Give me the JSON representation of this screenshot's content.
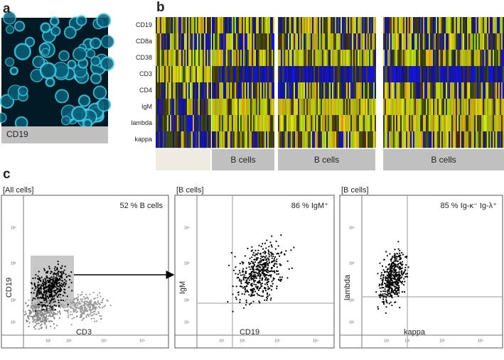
{
  "panel_a": {
    "label": "a",
    "caption": "CD19"
  },
  "panel_b": {
    "label": "b",
    "rows": [
      "CD19",
      "CD8a",
      "CD38",
      "CD3",
      "CD4",
      "IgM",
      "lambda",
      "kappa"
    ],
    "groups": [
      "B cells",
      "B cells",
      "B cells"
    ]
  },
  "panel_c": {
    "label": "c",
    "plots": [
      {
        "gate": "[All cells]",
        "stat": "52 % B cells",
        "ylabel": "CD19",
        "xlabel": "CD3",
        "xticks": [
          "10¹",
          "10²",
          "10³",
          "10⁴"
        ],
        "yticks": [
          "10¹",
          "10²",
          "10³",
          "10⁴"
        ]
      },
      {
        "gate": "[B cells]",
        "stat": "86 % IgM⁺",
        "ylabel": "IgM",
        "xlabel": "CD19",
        "xticks": [
          "10¹",
          "10²",
          "10³",
          "10⁴"
        ],
        "yticks": [
          "10¹",
          "10²",
          "10³",
          "10⁴"
        ]
      },
      {
        "gate": "[B cells]",
        "stat": "85 % Ig-κ⁻ Ig-λ⁺",
        "ylabel": "lambda",
        "xlabel": "kappa",
        "xticks": [
          "10¹",
          "10²",
          "10³",
          "10⁴"
        ],
        "yticks": [
          "10¹",
          "10²",
          "10³",
          "10⁴"
        ]
      }
    ]
  }
}
